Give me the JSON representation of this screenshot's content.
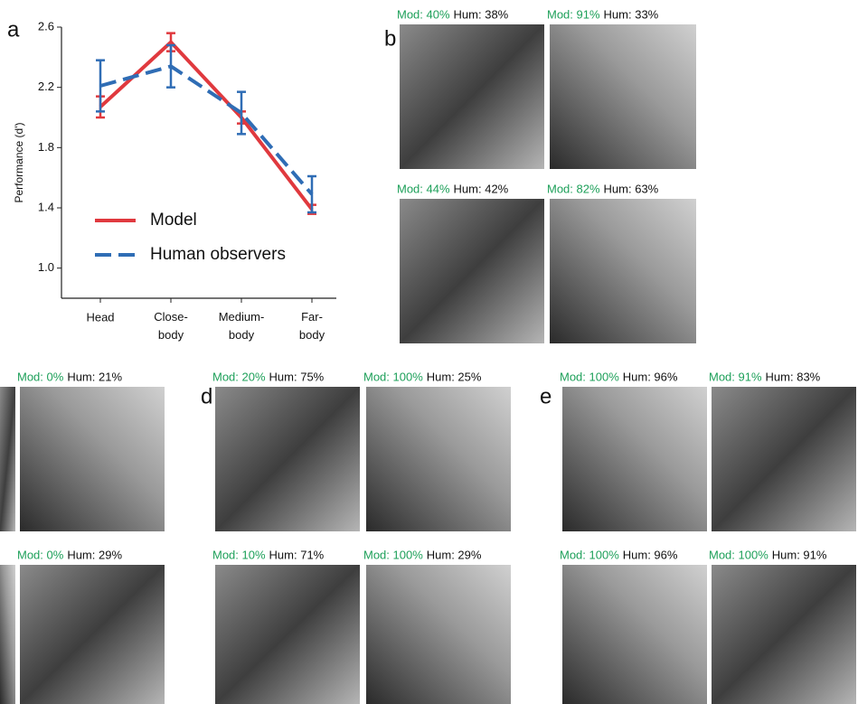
{
  "chart_data": {
    "type": "line",
    "panel_label": "a",
    "y_label": "Performance (d')",
    "categories": [
      "Head",
      "Close-body",
      "Medium-body",
      "Far-body"
    ],
    "ylim": [
      0.8,
      2.6
    ],
    "yticks": [
      1.0,
      1.4,
      1.8,
      2.2,
      2.6
    ],
    "series": [
      {
        "name": "Model",
        "color": "#e0393e",
        "dash": false,
        "values": [
          2.07,
          2.5,
          2.0,
          1.39
        ],
        "errors": [
          0.07,
          0.06,
          0.04,
          0.03
        ]
      },
      {
        "name": "Human observers",
        "color": "#2f6db5",
        "dash": true,
        "values": [
          2.21,
          2.34,
          2.03,
          1.49
        ],
        "errors": [
          0.17,
          0.14,
          0.14,
          0.12
        ]
      }
    ]
  },
  "panels": [
    {
      "letter": "b",
      "images": [
        {
          "mod": "Mod: 40%",
          "hum": "Hum: 38%"
        },
        {
          "mod": "Mod: 91%",
          "hum": "Hum: 33%"
        },
        {
          "mod": "Mod: 44%",
          "hum": "Hum: 42%"
        },
        {
          "mod": "Mod: 82%",
          "hum": "Hum: 63%"
        }
      ]
    },
    {
      "images": [
        {
          "mod": "Mod: 0%",
          "hum": "Hum: 21%"
        },
        {
          "mod": "Mod: 0%",
          "hum": "Hum: 29%"
        }
      ]
    },
    {
      "letter": "d",
      "images": [
        {
          "mod": "Mod: 20%",
          "hum": "Hum: 75%"
        },
        {
          "mod": "Mod: 100%",
          "hum": "Hum: 25%"
        },
        {
          "mod": "Mod: 10%",
          "hum": "Hum: 71%"
        },
        {
          "mod": "Mod: 100%",
          "hum": "Hum: 29%"
        }
      ]
    },
    {
      "letter": "e",
      "images": [
        {
          "mod": "Mod: 100%",
          "hum": "Hum: 96%"
        },
        {
          "mod": "Mod: 91%",
          "hum": "Hum: 83%"
        },
        {
          "mod": "Mod: 100%",
          "hum": "Hum: 96%"
        },
        {
          "mod": "Mod: 100%",
          "hum": "Hum: 91%"
        }
      ]
    }
  ]
}
